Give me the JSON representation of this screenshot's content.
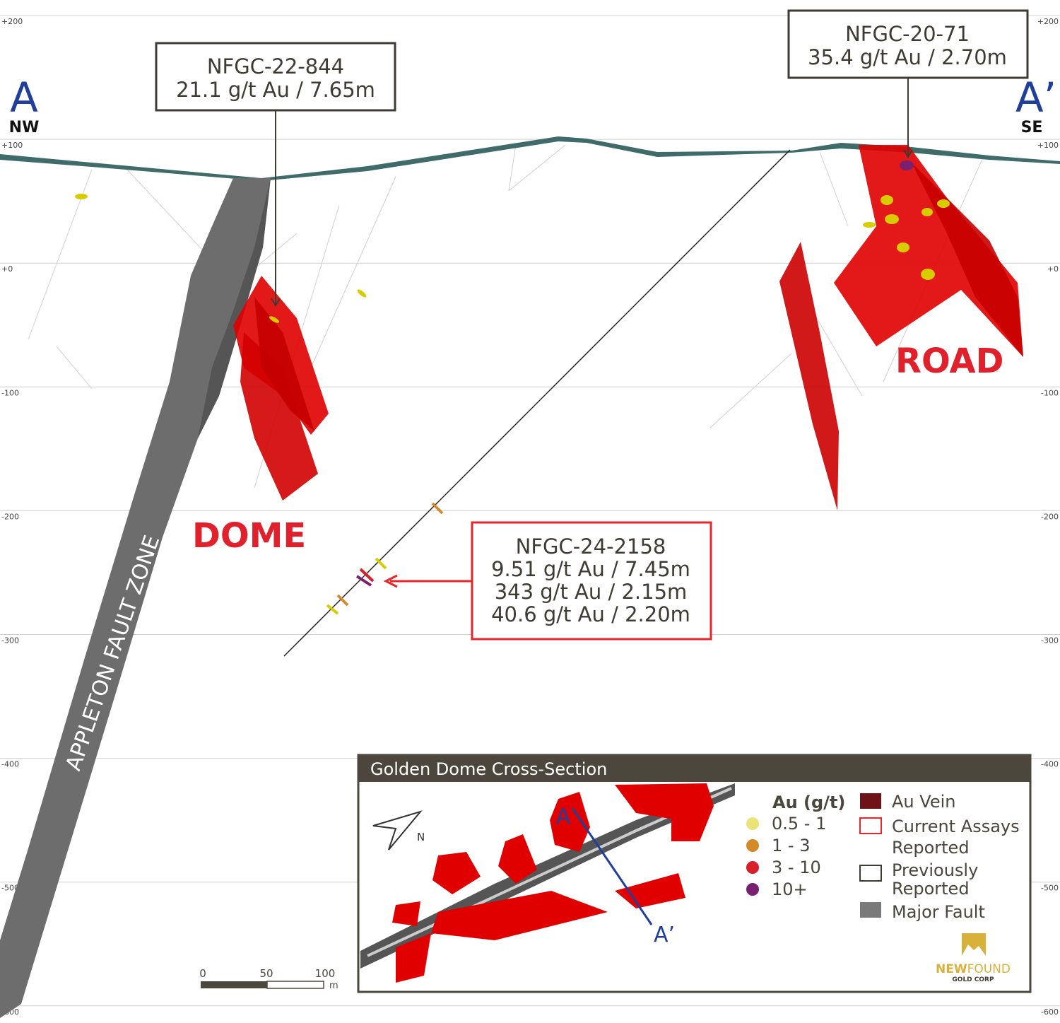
{
  "elevation_labels": [
    "+200",
    "+100",
    "+0",
    "-100",
    "-200",
    "-300",
    "-400",
    "-500",
    "-600"
  ],
  "section_ends": {
    "left": {
      "letter": "A",
      "direction": "NW"
    },
    "right": {
      "letter": "A’",
      "direction": "SE"
    }
  },
  "callouts": [
    {
      "hole": "NFGC-22-844",
      "lines": [
        "21.1 g/t Au / 7.65m"
      ],
      "status": "Previously Reported"
    },
    {
      "hole": "NFGC-20-71",
      "lines": [
        "35.4 g/t Au / 2.70m"
      ],
      "status": "Previously Reported"
    },
    {
      "hole": "NFGC-24-2158",
      "lines": [
        "9.51 g/t Au / 7.45m",
        "343 g/t Au / 2.15m",
        "40.6 g/t Au / 2.20m"
      ],
      "status": "Current Assays Reported"
    }
  ],
  "zone_labels": {
    "dome": "DOME",
    "road": "ROAD",
    "fault": "APPLETON FAULT ZONE"
  },
  "scale_bar": {
    "ticks": [
      "0",
      "50",
      "100"
    ],
    "unit": "m"
  },
  "inset": {
    "title": "Golden Dome Cross-Section",
    "north_label": "N",
    "section_start": "A",
    "section_end": "A’"
  },
  "legend": {
    "title": "Au (g/t)",
    "grades": [
      {
        "label": "0.5 - 1",
        "color": "#ebe378"
      },
      {
        "label": "1 - 3",
        "color": "#d58a2a"
      },
      {
        "label": "3 - 10",
        "color": "#d81f2a"
      },
      {
        "label": "10+",
        "color": "#7a2070"
      }
    ],
    "features": [
      {
        "label": "Au Vein",
        "style": "fill",
        "color": "#6e1419"
      },
      {
        "label": "Current Assays Reported",
        "lines": [
          "Current Assays",
          "Reported"
        ],
        "style": "outline",
        "color": "#e8262a"
      },
      {
        "label": "Previously Reported",
        "lines": [
          "Previously",
          "Reported"
        ],
        "style": "outline",
        "color": "#3f3b33"
      },
      {
        "label": "Major Fault",
        "style": "fill",
        "color": "#7a7a7a"
      }
    ]
  },
  "logo": {
    "text_a": "NEW",
    "text_b": "FOUND",
    "subtitle": "GOLD CORP"
  },
  "colors": {
    "vein": "#e00000",
    "fault": "#6d6d6d",
    "surface": "#3f6b6b",
    "accent_blue": "#1f3f9a",
    "label_red": "#e0202a",
    "inset_header": "#4b473c"
  }
}
